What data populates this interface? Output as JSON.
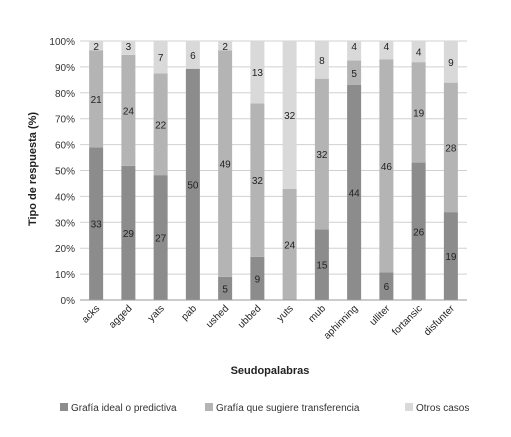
{
  "chart_data": {
    "type": "bar",
    "stacked": "percent",
    "xlabel": "Seudopalabras",
    "ylabel": "Tipo de respuesta (%)",
    "yticks": [
      "0%",
      "10%",
      "20%",
      "30%",
      "40%",
      "50%",
      "60%",
      "70%",
      "80%",
      "90%",
      "100%"
    ],
    "ylim": [
      0,
      100
    ],
    "grid": true,
    "legend_position": "bottom",
    "categories": [
      "acks",
      "agged",
      "yats",
      "pab",
      "ushed",
      "ubbed",
      "yuts",
      "mub",
      "aphinning",
      "ulliter",
      "fortansic",
      "disfunter"
    ],
    "series": [
      {
        "name": "Grafía ideal o predictiva",
        "color": "#8c8c8c",
        "values": [
          33,
          29,
          27,
          50,
          5,
          9,
          0,
          15,
          44,
          6,
          26,
          19
        ]
      },
      {
        "name": "Grafía que sugiere transferencia",
        "color": "#b4b4b4",
        "values": [
          21,
          24,
          22,
          0,
          49,
          32,
          24,
          32,
          5,
          46,
          19,
          28
        ]
      },
      {
        "name": "Otros casos",
        "color": "#d9d9d9",
        "values": [
          2,
          3,
          7,
          6,
          2,
          13,
          32,
          8,
          4,
          4,
          4,
          9
        ]
      }
    ]
  }
}
